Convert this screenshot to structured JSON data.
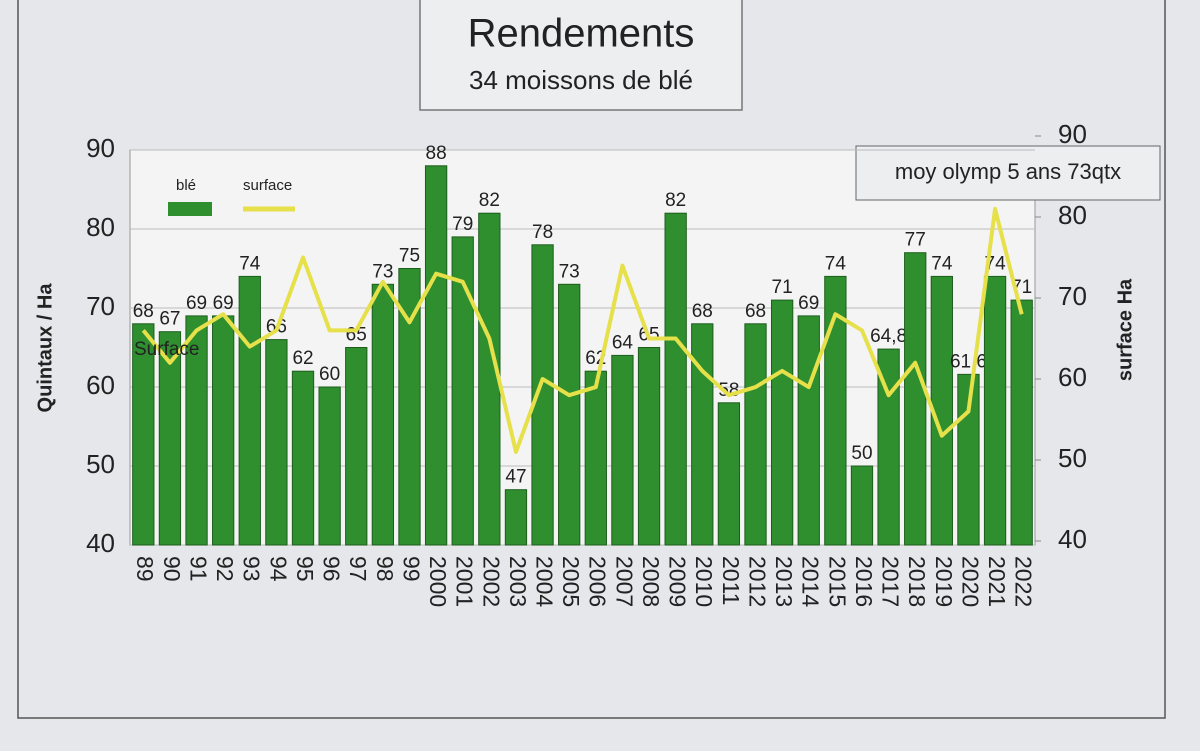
{
  "chart_data": {
    "type": "bar",
    "title": "Rendements",
    "subtitle": "34 moissons de blé",
    "y_label": "Quintaux / Ha",
    "y2_label": "surface  Ha",
    "annotations": [
      "moy olymp 5 ans 73qtx",
      "Surface"
    ],
    "categories": [
      "89",
      "90",
      "91",
      "92",
      "93",
      "94",
      "95",
      "96",
      "97",
      "98",
      "99",
      "2000",
      "2001",
      "2002",
      "2003",
      "2004",
      "2005",
      "2006",
      "2007",
      "2008",
      "2009",
      "2010",
      "2011",
      "2012",
      "2013",
      "2014",
      "2015",
      "2016",
      "2017",
      "2018",
      "2019",
      "2020",
      "2021",
      "2022"
    ],
    "series": [
      {
        "name": "blé",
        "color": "#2f8f2f",
        "values": [
          68,
          67,
          69,
          69,
          74,
          66,
          62,
          60,
          65,
          73,
          75,
          88,
          79,
          82,
          47,
          78,
          73,
          62,
          64,
          65,
          82,
          68,
          58,
          68,
          71,
          69,
          74,
          50,
          64.8,
          77,
          74,
          61.6,
          74,
          71
        ],
        "value_labels": [
          "68",
          "67",
          "69",
          "69",
          "74",
          "66",
          "62",
          "60",
          "65",
          "73",
          "75",
          "88",
          "79",
          "82",
          "47",
          "78",
          "73",
          "62",
          "64",
          "65",
          "82",
          "68",
          "58",
          "68",
          "71",
          "69",
          "74",
          "50",
          "64,8",
          "77",
          "74",
          "61,6",
          "74",
          "71"
        ]
      },
      {
        "name": "surface",
        "color": "#e6e04a",
        "type": "line",
        "axis": "y2",
        "values": [
          66,
          62,
          66,
          68,
          64,
          66,
          75,
          66,
          66,
          72,
          67,
          73,
          72,
          65,
          51,
          60,
          58,
          59,
          74,
          65,
          65,
          61,
          58,
          59,
          61,
          59,
          68,
          66,
          58,
          62,
          53,
          56,
          81,
          68
        ]
      }
    ],
    "ylim": [
      40,
      90
    ],
    "yticks": [
      40,
      50,
      60,
      70,
      80,
      90
    ],
    "y2lim": [
      40,
      90
    ],
    "y2ticks": [
      40,
      50,
      60,
      70,
      80,
      90
    ],
    "grid": true
  }
}
